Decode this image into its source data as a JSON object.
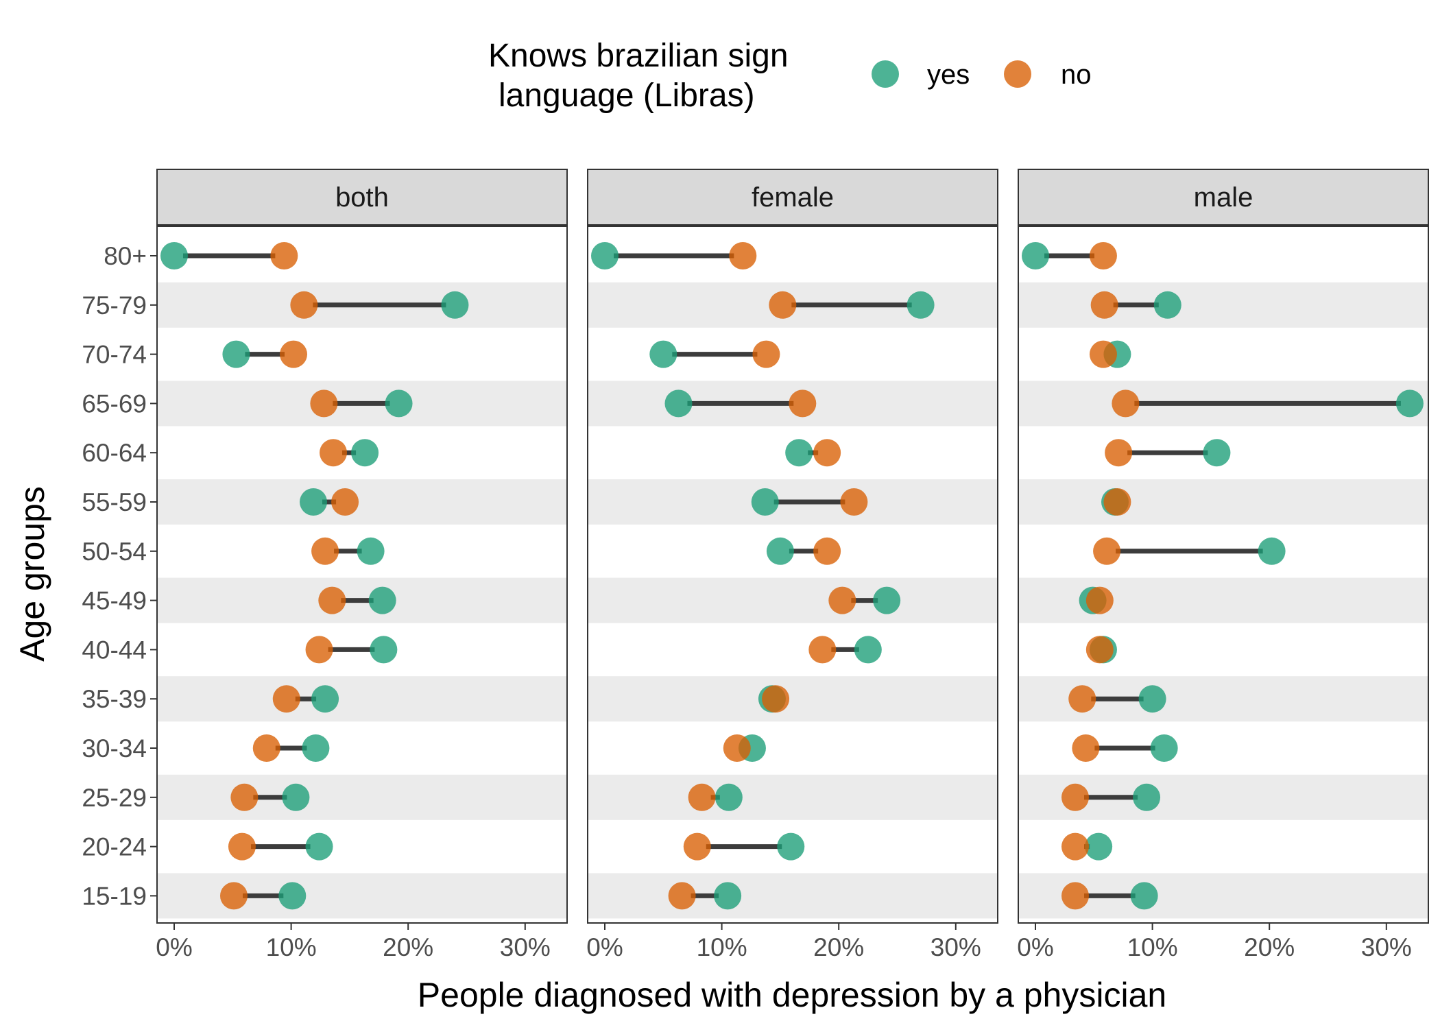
{
  "chart_data": {
    "type": "dumbbell",
    "xlabel": "People diagnosed with depression by a physician",
    "ylabel": "Age groups",
    "xlim": [
      0,
      32
    ],
    "x_ticks": [
      0,
      10,
      20,
      30
    ],
    "x_tick_labels": [
      "0%",
      "10%",
      "20%",
      "30%"
    ],
    "categories": [
      "80+",
      "75-79",
      "70-74",
      "65-69",
      "60-64",
      "55-59",
      "50-54",
      "45-49",
      "40-44",
      "35-39",
      "30-34",
      "25-29",
      "20-24",
      "15-19"
    ],
    "legend": {
      "title_line1": "Knows brazilian sign",
      "title_line2": "language (Libras)",
      "position": "top",
      "entries": [
        {
          "label": "yes",
          "color": "#1b9e77"
        },
        {
          "label": "no",
          "color": "#d95f02"
        }
      ]
    },
    "colors": {
      "yes": "#1b9e77",
      "no": "#d95f02",
      "segment": "#3c3c3c",
      "strip_fill": "#d9d9d9",
      "band": "#ebebeb"
    },
    "panels": [
      {
        "name": "both",
        "yes": [
          0,
          24,
          5.3,
          19.2,
          16.3,
          11.9,
          16.8,
          17.8,
          17.9,
          12.9,
          12.1,
          10.4,
          12.4,
          10.1
        ],
        "no": [
          9.4,
          11.1,
          10.2,
          12.8,
          13.6,
          14.6,
          12.9,
          13.5,
          12.4,
          9.6,
          7.9,
          6.0,
          5.8,
          5.1
        ]
      },
      {
        "name": "female",
        "yes": [
          0,
          27,
          5.0,
          6.3,
          16.6,
          13.7,
          15.0,
          24.1,
          22.5,
          14.3,
          12.6,
          10.6,
          15.9,
          10.5
        ],
        "no": [
          11.8,
          15.2,
          13.8,
          16.9,
          19.0,
          21.3,
          19.0,
          20.3,
          18.6,
          14.6,
          11.3,
          8.3,
          7.9,
          6.6
        ]
      },
      {
        "name": "male",
        "yes": [
          0,
          11.3,
          7.0,
          32.0,
          15.5,
          6.8,
          20.2,
          4.9,
          5.8,
          10.0,
          11.0,
          9.5,
          5.4,
          9.3
        ],
        "no": [
          5.8,
          5.9,
          5.8,
          7.7,
          7.1,
          7.0,
          6.1,
          5.5,
          5.5,
          4.0,
          4.3,
          3.4,
          3.4,
          3.4
        ]
      }
    ]
  }
}
